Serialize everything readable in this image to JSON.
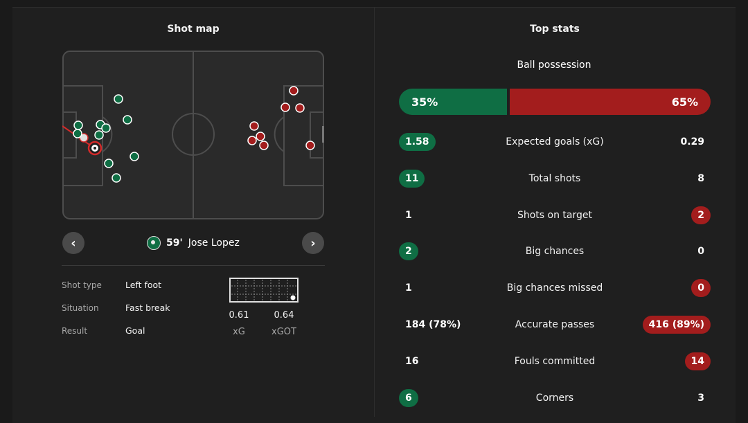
{
  "shot_map": {
    "title": "Shot map",
    "player": {
      "minute": "59'",
      "name": "Jose Lopez"
    },
    "details": [
      {
        "label": "Shot type",
        "value": "Left foot"
      },
      {
        "label": "Situation",
        "value": "Fast break"
      },
      {
        "label": "Result",
        "value": "Goal"
      }
    ],
    "xg": {
      "value": "0.61",
      "label": "xG"
    },
    "xgot": {
      "value": "0.64",
      "label": "xGOT"
    },
    "prev_icon": "chevron-left-icon",
    "next_icon": "chevron-right-icon"
  },
  "top_stats": {
    "title": "Top stats",
    "possession": {
      "label": "Ball possession",
      "home": "35%",
      "away": "65%",
      "home_fraction": 0.35
    },
    "rows": [
      {
        "name": "Expected goals (xG)",
        "home": "1.58",
        "away": "0.29",
        "highlight": "home"
      },
      {
        "name": "Total shots",
        "home": "11",
        "away": "8",
        "highlight": "home"
      },
      {
        "name": "Shots on target",
        "home": "1",
        "away": "2",
        "highlight": "away"
      },
      {
        "name": "Big chances",
        "home": "2",
        "away": "0",
        "highlight": "home"
      },
      {
        "name": "Big chances missed",
        "home": "1",
        "away": "0",
        "highlight": "away"
      },
      {
        "name": "Accurate passes",
        "home": "184 (78%)",
        "away": "416 (89%)",
        "highlight": "away"
      },
      {
        "name": "Fouls committed",
        "home": "16",
        "away": "14",
        "highlight": "away"
      },
      {
        "name": "Corners",
        "home": "6",
        "away": "3",
        "highlight": "home"
      }
    ]
  },
  "colors": {
    "home": "#0f6e44",
    "away": "#a31d1d",
    "background": "#1f1f1f"
  }
}
